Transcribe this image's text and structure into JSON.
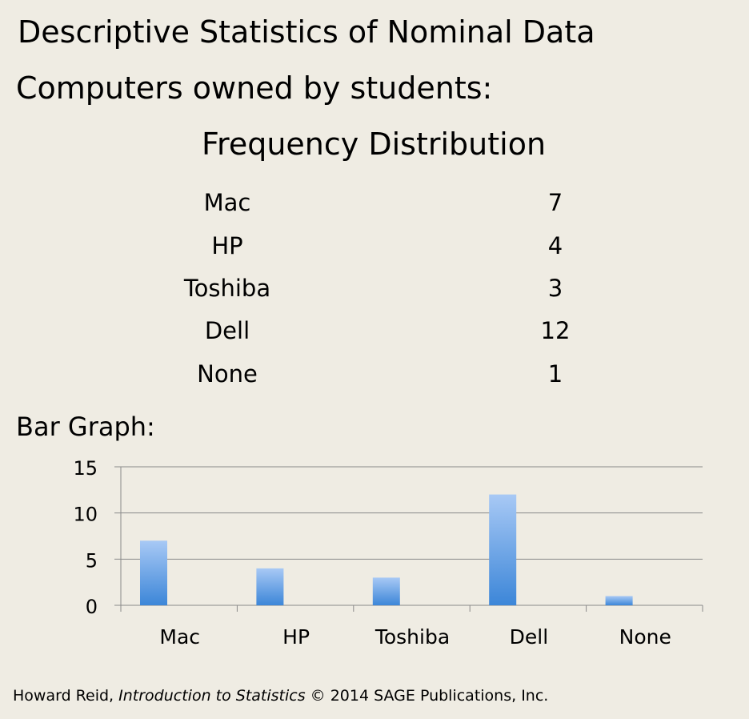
{
  "heading": "Descriptive Statistics of Nominal Data",
  "subheading": "Computers owned by students:",
  "frequency_title": "Frequency Distribution",
  "frequency_table": [
    {
      "category": "Mac",
      "count": "7"
    },
    {
      "category": "HP",
      "count": "4"
    },
    {
      "category": "Toshiba",
      "count": "3"
    },
    {
      "category": "Dell",
      "count": "12"
    },
    {
      "category": "None",
      "count": "1"
    }
  ],
  "bar_graph_label": "Bar Graph:",
  "chart_data": {
    "type": "bar",
    "categories": [
      "Mac",
      "HP",
      "Toshiba",
      "Dell",
      "None"
    ],
    "values": [
      7,
      4,
      3,
      12,
      1
    ],
    "title": "",
    "xlabel": "",
    "ylabel": "",
    "ylim": [
      0,
      15
    ],
    "yticks": [
      0,
      5,
      10,
      15
    ],
    "grid": true,
    "legend": "none",
    "bar_color_top": "#a8c9f5",
    "bar_color_bottom": "#3c86d8"
  },
  "footer": {
    "author": "Howard Reid, ",
    "book": "Introduction to Statistics",
    "rest": " © 2014 SAGE Publications, Inc."
  }
}
